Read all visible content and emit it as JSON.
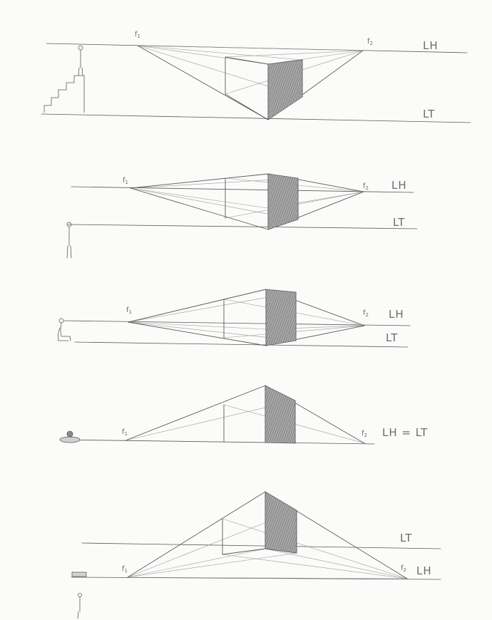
{
  "sheet": {
    "panels": [
      {
        "vp1": "f",
        "vp1_sub": "1",
        "vp2": "f",
        "vp2_sub": "2",
        "horizon": "LH",
        "ground": "LT"
      },
      {
        "vp1": "f",
        "vp1_sub": "1",
        "vp2": "f",
        "vp2_sub": "2",
        "horizon": "LH",
        "ground": "LT"
      },
      {
        "vp1": "f",
        "vp1_sub": "1",
        "vp2": "f",
        "vp2_sub": "2",
        "horizon": "LH",
        "ground": "LT"
      },
      {
        "vp1": "f",
        "vp1_sub": "1",
        "vp2": "f",
        "vp2_sub": "2",
        "combined": "LH = LT"
      },
      {
        "vp1": "f",
        "vp1_sub": "1",
        "vp2": "f",
        "vp2_sub": "2",
        "horizon": "LH",
        "ground": "LT"
      }
    ]
  },
  "colors": {
    "graphite": "#5a5a5a",
    "light_graphite": "#9a9a9a",
    "shade": "#8a8a8a",
    "paper": "#fbfbfa"
  }
}
